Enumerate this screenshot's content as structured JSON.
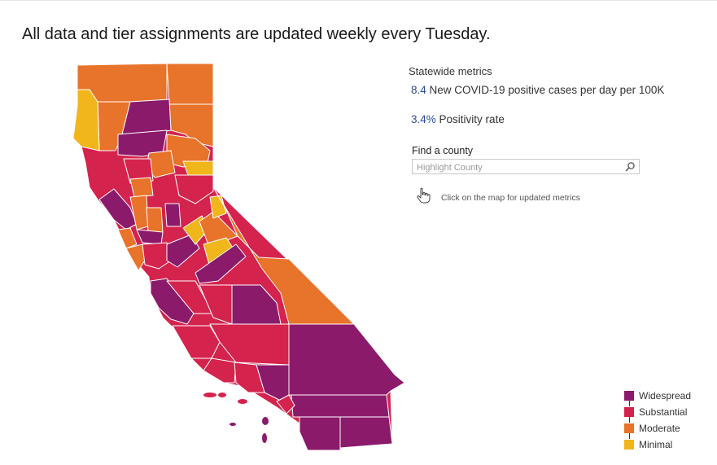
{
  "headline": "All data and tier assignments are updated weekly every Tuesday.",
  "metrics": {
    "title": "Statewide metrics",
    "cases_value": "8.4",
    "cases_label": "New COVID-19 positive cases per day per 100K",
    "positivity_value": "3.4%",
    "positivity_label": "Positivity rate"
  },
  "search": {
    "label": "Find a county",
    "placeholder": "Highlight County"
  },
  "hint": "Click on the map for updated metrics",
  "legend": [
    {
      "label": "Widespread",
      "color": "#8b1a6b"
    },
    {
      "label": "Substantial",
      "color": "#d4234d"
    },
    {
      "label": "Moderate",
      "color": "#e8732a"
    },
    {
      "label": "Minimal",
      "color": "#f0b61b"
    }
  ],
  "colors": {
    "widespread": "#8b1a6b",
    "substantial": "#d4234d",
    "moderate": "#e8732a",
    "minimal": "#f0b61b",
    "metric_value": "#2a4c9a"
  },
  "icons": [
    "search-icon",
    "pointing-hand-icon"
  ]
}
